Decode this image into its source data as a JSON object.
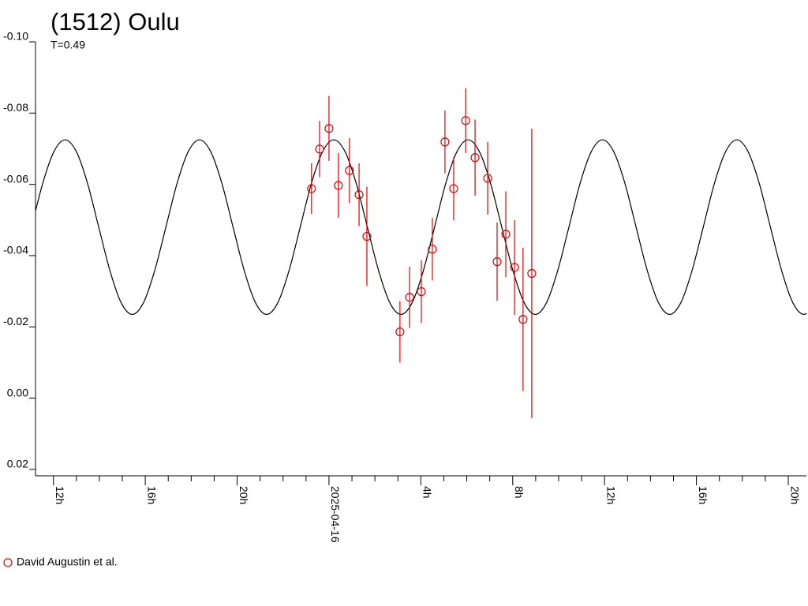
{
  "chart_data": {
    "type": "scatter",
    "title": "(1512) Oulu",
    "subtitle": "T=0.49",
    "xlim": [
      -12.78,
      20.79
    ],
    "ylim": [
      -0.1,
      0.0218
    ],
    "y_inverted": true,
    "xticks": [
      {
        "value": -12,
        "label": "12h"
      },
      {
        "value": -8,
        "label": "16h"
      },
      {
        "value": -4,
        "label": "20h"
      },
      {
        "value": 0,
        "label": "2025-04-16"
      },
      {
        "value": 4,
        "label": "4h"
      },
      {
        "value": 8,
        "label": "8h"
      },
      {
        "value": 12,
        "label": "12h"
      },
      {
        "value": 16,
        "label": "16h"
      },
      {
        "value": 20,
        "label": "20h"
      }
    ],
    "xminorticks": [
      -11,
      -10,
      -9,
      -7,
      -6,
      -5,
      -3,
      -2,
      -1,
      1,
      2,
      3,
      5,
      6,
      7,
      9,
      10,
      11,
      13,
      14,
      15,
      17,
      18,
      19
    ],
    "yticks": [
      {
        "value": -0.1,
        "label": "-0.10"
      },
      -0.08,
      -0.06,
      -0.04,
      -0.02,
      {
        "value": 0,
        "label": "0.00"
      },
      0.02
    ],
    "series": [
      {
        "type": "line",
        "color": "#000000",
        "x": [
          -12.9525,
          -12.465,
          -11.9775,
          -11.49,
          -11.0025,
          -10.515,
          -10.0275,
          -9.54,
          -9.0525,
          -8.565,
          -8.0775,
          -7.59,
          -7.1025,
          -6.615,
          -6.1275,
          -5.64,
          -5.1525,
          -4.665,
          -4.1775,
          -3.69,
          -3.2025,
          -2.715,
          -2.2275,
          -1.74,
          -1.2525,
          -0.765,
          -0.2775,
          0.21,
          0.6975,
          1.185,
          1.6725,
          2.16,
          2.6475,
          3.135,
          3.6225,
          4.11,
          4.5975,
          5.085,
          5.5725,
          6.06,
          6.5475,
          7.035,
          7.5225,
          8.01,
          8.4975,
          8.985,
          9.4725,
          9.96,
          10.4475,
          10.935,
          11.4225,
          11.91,
          12.3975,
          12.885,
          13.3725,
          13.86,
          14.3475,
          14.835,
          15.3225,
          15.81,
          16.2975,
          16.785,
          17.2725,
          17.76,
          18.2475,
          18.735,
          19.2225,
          19.71,
          20.1975,
          20.685,
          21.1725
        ],
        "values": [
          -0.048,
          -0.0603,
          -0.0692,
          -0.0725,
          -0.0692,
          -0.0603,
          -0.048,
          -0.0358,
          -0.0268,
          -0.0235,
          -0.0268,
          -0.0358,
          -0.048,
          -0.0603,
          -0.0692,
          -0.0725,
          -0.0692,
          -0.0603,
          -0.048,
          -0.0358,
          -0.0268,
          -0.0235,
          -0.0268,
          -0.0358,
          -0.048,
          -0.0603,
          -0.0692,
          -0.0725,
          -0.0692,
          -0.0603,
          -0.048,
          -0.0358,
          -0.0268,
          -0.0235,
          -0.0268,
          -0.0358,
          -0.048,
          -0.0603,
          -0.0692,
          -0.0725,
          -0.0692,
          -0.0603,
          -0.048,
          -0.0358,
          -0.0268,
          -0.0235,
          -0.0268,
          -0.0358,
          -0.048,
          -0.0603,
          -0.0692,
          -0.0725,
          -0.0692,
          -0.0603,
          -0.048,
          -0.0358,
          -0.0268,
          -0.0235,
          -0.0268,
          -0.0358,
          -0.048,
          -0.0603,
          -0.0692,
          -0.0725,
          -0.0692,
          -0.0603,
          -0.048,
          -0.0358,
          -0.0268,
          -0.0235,
          -0.0268
        ]
      },
      {
        "type": "errorbar",
        "name": "David Augustin et al.",
        "color": "#dd0000",
        "x": [
          -0.76,
          -0.41,
          0.0,
          0.41,
          0.89,
          1.31,
          1.65,
          3.09,
          3.51,
          4.02,
          4.5,
          5.05,
          5.43,
          5.95,
          6.36,
          6.91,
          7.32,
          7.7,
          8.08,
          8.45,
          8.83
        ],
        "values": [
          -0.0588,
          -0.0699,
          -0.0757,
          -0.0597,
          -0.0639,
          -0.0571,
          -0.0454,
          -0.0186,
          -0.0283,
          -0.0299,
          -0.0418,
          -0.0719,
          -0.0588,
          -0.0779,
          -0.0675,
          -0.0617,
          -0.0383,
          -0.046,
          -0.0367,
          -0.0221,
          -0.035
        ],
        "errors": [
          0.0071,
          0.0079,
          0.0091,
          0.0091,
          0.0091,
          0.0088,
          0.0139,
          0.0086,
          0.0086,
          0.0088,
          0.0088,
          0.0088,
          0.0089,
          0.0091,
          0.0107,
          0.0102,
          0.011,
          0.012,
          0.0133,
          0.0201,
          0.0406
        ]
      }
    ]
  }
}
